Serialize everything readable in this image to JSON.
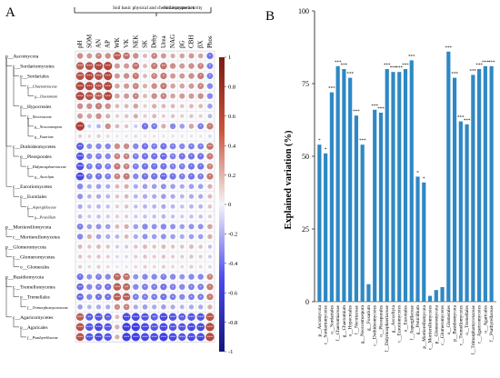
{
  "panelA": {
    "letter": "A",
    "groups": [
      "Soil basic physical and chemical properties",
      "Soil enzyme activity"
    ],
    "columns": [
      "pH",
      "SOM",
      "AN",
      "AP",
      "WK",
      "VK",
      "NEK",
      "SK",
      "Dehy",
      "Urea",
      "NAG",
      "βG",
      "CBH",
      "βX",
      "Phos"
    ],
    "rows": [
      {
        "label": "p__Ascomycota",
        "level": 0
      },
      {
        "label": "c__Sordariomycetes",
        "level": 1
      },
      {
        "label": "o__Sordariales",
        "level": 2
      },
      {
        "label": "f__Chaetomiaceae",
        "level": 3
      },
      {
        "label": "g__Chaetomium",
        "level": 4
      },
      {
        "label": "o__Hypocreales",
        "level": 2
      },
      {
        "label": "f__Nectriaceae",
        "level": 3
      },
      {
        "label": "g__Neocosmospora",
        "level": 4
      },
      {
        "label": "g__Fusarium",
        "level": 4
      },
      {
        "label": "c__Dothideomycetes",
        "level": 1
      },
      {
        "label": "o__Pleosporales",
        "level": 2
      },
      {
        "label": "f__Didymosphaeriaceae",
        "level": 3
      },
      {
        "label": "g__Ascochyta",
        "level": 4
      },
      {
        "label": "c__Eurotiomycetes",
        "level": 1
      },
      {
        "label": "o__Eurotiales",
        "level": 2
      },
      {
        "label": "f__Aspergillaceae",
        "level": 3
      },
      {
        "label": "g__Penicillium",
        "level": 4
      },
      {
        "label": "p__Mortierellomycota",
        "level": 0
      },
      {
        "label": "c__Mortierellomycetes",
        "level": 1
      },
      {
        "label": "p__Glomeromycota",
        "level": 0
      },
      {
        "label": "c__Glomeromycetes",
        "level": 1
      },
      {
        "label": "o__Glomerales",
        "level": 2
      },
      {
        "label": "p__Basidiomycota",
        "level": 0
      },
      {
        "label": "c__Tremellomycetes",
        "level": 1
      },
      {
        "label": "o__Tremellales",
        "level": 2
      },
      {
        "label": "f__Trimorphomycetaceae",
        "level": 3
      },
      {
        "label": "c__Agaricomycetes",
        "level": 1
      },
      {
        "label": "o__Agaricales",
        "level": 2
      },
      {
        "label": "f__Psathyrellaceae",
        "level": 3
      }
    ],
    "colorbar": {
      "ticks": [
        "1",
        "0.8",
        "0.6",
        "0.4",
        "0.2",
        "0",
        "-0.2",
        "-0.4",
        "-0.6",
        "-0.8",
        "-1"
      ],
      "colors": {
        "positive": "#a52a1e",
        "neutral": "#f4f4f7",
        "negative": "#1d1ddf"
      }
    },
    "matrix": [
      [
        0.5,
        0.45,
        0.55,
        0.5,
        0.75,
        0.65,
        0.5,
        0.3,
        0.55,
        0.45,
        0.35,
        0.4,
        0.45,
        0.4,
        -0.6
      ],
      [
        0.75,
        0.8,
        0.85,
        0.85,
        0.45,
        0.45,
        0.65,
        0.3,
        0.6,
        0.65,
        0.5,
        0.45,
        0.5,
        0.55,
        -0.55
      ],
      [
        0.8,
        0.85,
        0.8,
        0.85,
        0.45,
        0.5,
        0.6,
        0.3,
        0.55,
        0.6,
        0.45,
        0.45,
        0.5,
        0.6,
        -0.55
      ],
      [
        0.85,
        0.85,
        0.8,
        0.85,
        0.4,
        0.45,
        0.55,
        0.35,
        0.5,
        0.6,
        0.4,
        0.4,
        0.45,
        0.55,
        -0.5
      ],
      [
        0.85,
        0.8,
        0.75,
        0.85,
        0.4,
        0.45,
        0.55,
        0.3,
        0.5,
        0.55,
        0.4,
        0.45,
        0.45,
        0.5,
        -0.5
      ],
      [
        0.5,
        0.5,
        0.6,
        0.5,
        0.3,
        0.3,
        0.4,
        0.2,
        0.35,
        0.3,
        0.3,
        0.25,
        0.3,
        0.3,
        -0.4
      ],
      [
        0.45,
        0.4,
        0.5,
        0.35,
        0.2,
        0.25,
        0.35,
        0.2,
        0.3,
        0.2,
        0.25,
        0.2,
        0.25,
        0.2,
        -0.3
      ],
      [
        0.9,
        -0.2,
        -0.3,
        0.5,
        0.3,
        0.25,
        -0.2,
        -0.6,
        -0.55,
        0.35,
        -0.5,
        -0.4,
        0.4,
        -0.55,
        0.6
      ],
      [
        0.2,
        0.15,
        0.2,
        0.15,
        0.1,
        0.1,
        0.15,
        0.1,
        0.1,
        0.1,
        0.1,
        0.1,
        0.1,
        0.1,
        -0.15
      ],
      [
        -0.7,
        -0.45,
        -0.5,
        -0.5,
        0.5,
        0.5,
        -0.5,
        -0.6,
        -0.55,
        -0.6,
        -0.55,
        -0.5,
        -0.55,
        -0.55,
        0.65
      ],
      [
        -0.75,
        -0.5,
        -0.55,
        -0.5,
        0.55,
        0.55,
        -0.55,
        -0.6,
        -0.6,
        -0.65,
        -0.55,
        -0.6,
        -0.6,
        -0.6,
        0.6
      ],
      [
        -0.75,
        -0.55,
        -0.6,
        -0.55,
        0.6,
        0.55,
        -0.55,
        -0.6,
        -0.6,
        -0.6,
        -0.55,
        -0.55,
        -0.6,
        -0.6,
        0.55
      ],
      [
        -0.8,
        -0.55,
        -0.6,
        -0.55,
        0.55,
        0.6,
        -0.5,
        -0.6,
        -0.6,
        -0.65,
        -0.6,
        -0.55,
        -0.6,
        -0.55,
        0.6
      ],
      [
        -0.5,
        -0.35,
        -0.4,
        -0.35,
        0.3,
        0.35,
        -0.35,
        -0.4,
        -0.4,
        -0.45,
        -0.4,
        -0.35,
        -0.4,
        -0.4,
        0.35
      ],
      [
        -0.45,
        -0.3,
        -0.35,
        -0.3,
        0.25,
        0.3,
        -0.3,
        -0.35,
        -0.35,
        -0.4,
        -0.35,
        -0.3,
        -0.35,
        -0.35,
        0.3
      ],
      [
        -0.35,
        -0.25,
        -0.3,
        -0.25,
        0.2,
        0.25,
        -0.25,
        -0.3,
        -0.3,
        -0.35,
        -0.3,
        -0.25,
        -0.3,
        -0.3,
        0.25
      ],
      [
        -0.3,
        -0.2,
        -0.25,
        -0.2,
        0.2,
        0.2,
        -0.2,
        -0.25,
        -0.25,
        -0.3,
        -0.25,
        -0.2,
        -0.25,
        -0.25,
        0.2
      ],
      [
        -0.55,
        -0.4,
        -0.45,
        -0.4,
        0.3,
        0.35,
        -0.4,
        -0.5,
        -0.45,
        -0.5,
        -0.45,
        -0.4,
        -0.45,
        -0.45,
        0.4
      ],
      [
        -0.5,
        0.35,
        -0.4,
        -0.35,
        -0.3,
        0.3,
        -0.35,
        -0.45,
        -0.4,
        -0.45,
        -0.4,
        -0.35,
        -0.4,
        -0.4,
        0.35
      ],
      [
        0.3,
        0.25,
        0.3,
        0.25,
        -0.2,
        -0.2,
        0.25,
        0.3,
        0.25,
        0.3,
        0.25,
        0.25,
        0.3,
        0.25,
        -0.25
      ],
      [
        0.25,
        0.2,
        0.25,
        0.2,
        -0.15,
        -0.15,
        0.2,
        0.25,
        0.2,
        0.25,
        0.2,
        0.2,
        0.25,
        0.2,
        -0.2
      ],
      [
        0.2,
        0.15,
        0.2,
        0.15,
        -0.1,
        -0.1,
        0.15,
        0.2,
        0.15,
        0.2,
        0.15,
        0.15,
        0.2,
        0.15,
        -0.15
      ],
      [
        -0.6,
        -0.45,
        -0.55,
        -0.5,
        0.7,
        0.65,
        -0.45,
        -0.5,
        -0.5,
        -0.55,
        -0.5,
        -0.45,
        -0.5,
        -0.5,
        0.55
      ],
      [
        -0.65,
        -0.5,
        -0.55,
        -0.6,
        0.75,
        0.7,
        -0.5,
        -0.55,
        -0.55,
        -0.6,
        -0.55,
        -0.5,
        -0.55,
        -0.55,
        0.6
      ],
      [
        -0.65,
        -0.5,
        -0.6,
        -0.6,
        0.75,
        0.75,
        -0.55,
        -0.55,
        -0.55,
        -0.6,
        -0.55,
        -0.5,
        -0.55,
        -0.55,
        0.6
      ],
      [
        -0.4,
        -0.3,
        -0.35,
        -0.35,
        0.5,
        0.55,
        -0.35,
        -0.4,
        -0.35,
        -0.4,
        -0.35,
        -0.3,
        -0.35,
        -0.35,
        0.35
      ],
      [
        0.75,
        -0.7,
        -0.75,
        -0.7,
        0.3,
        -0.8,
        -0.8,
        -0.75,
        -0.7,
        -0.8,
        -0.75,
        -0.7,
        -0.75,
        -0.75,
        0.8
      ],
      [
        0.8,
        -0.75,
        -0.8,
        -0.75,
        0.35,
        -0.85,
        -0.85,
        -0.8,
        -0.75,
        -0.8,
        -0.75,
        -0.75,
        -0.8,
        -0.8,
        0.85
      ],
      [
        0.8,
        -0.75,
        -0.8,
        -0.75,
        0.35,
        -0.85,
        -0.85,
        -0.8,
        -0.8,
        -0.85,
        -0.8,
        -0.75,
        -0.8,
        -0.8,
        0.85
      ]
    ]
  },
  "panelB": {
    "letter": "B",
    "chart_data": {
      "type": "bar",
      "ylabel": "Explained variation (%)",
      "ylim": [
        0,
        100
      ],
      "yticks": [
        0,
        25,
        50,
        75,
        100
      ],
      "grid": false,
      "bar_color": "#2e88c4",
      "categories": [
        "p__Ascomycota",
        "c__Sordariomycetes",
        "o__Sordariales",
        "f__Chaetomiaceae",
        "g__Chaetomium",
        "o__Hypocreales",
        "f__Nectriaceae",
        "g__Neocosmospora",
        "g__Fusarium",
        "c__Dothideomycetes",
        "o__Pleosporales",
        "f__Didymosphaeriaceae",
        "g__Ascochyta",
        "c__Eurotiomycetes",
        "o__Eurotiales",
        "f__Aspergillaceae",
        "g__Penicillium",
        "p__Mortierellomycota",
        "c__Mortierellomycetes",
        "p__Glomeromycota",
        "c__Glomeromycetes",
        "o__Glomerales",
        "p__Basidiomycota",
        "c__Tremellomycetes",
        "o__Tremellales",
        "f__Trimorphomycetaceae",
        "c__Agaricomycetes",
        "o__Agaricales",
        "f__Psathyrellaceae"
      ],
      "values": [
        54,
        51,
        72,
        81,
        80,
        77,
        64,
        54,
        6,
        66,
        65,
        80,
        79,
        79,
        80,
        83,
        43,
        41,
        2,
        4,
        5,
        86,
        77,
        62,
        61,
        78,
        80,
        81,
        81
      ],
      "significance": [
        "*",
        "*",
        "***",
        "***",
        "***",
        "***",
        "***",
        "***",
        "",
        "***",
        "***",
        "***",
        "***",
        "***",
        "***",
        "***",
        "*",
        "*",
        "",
        "",
        "",
        "***",
        "***",
        "***",
        "***",
        "***",
        "***",
        "***",
        "***"
      ]
    }
  }
}
